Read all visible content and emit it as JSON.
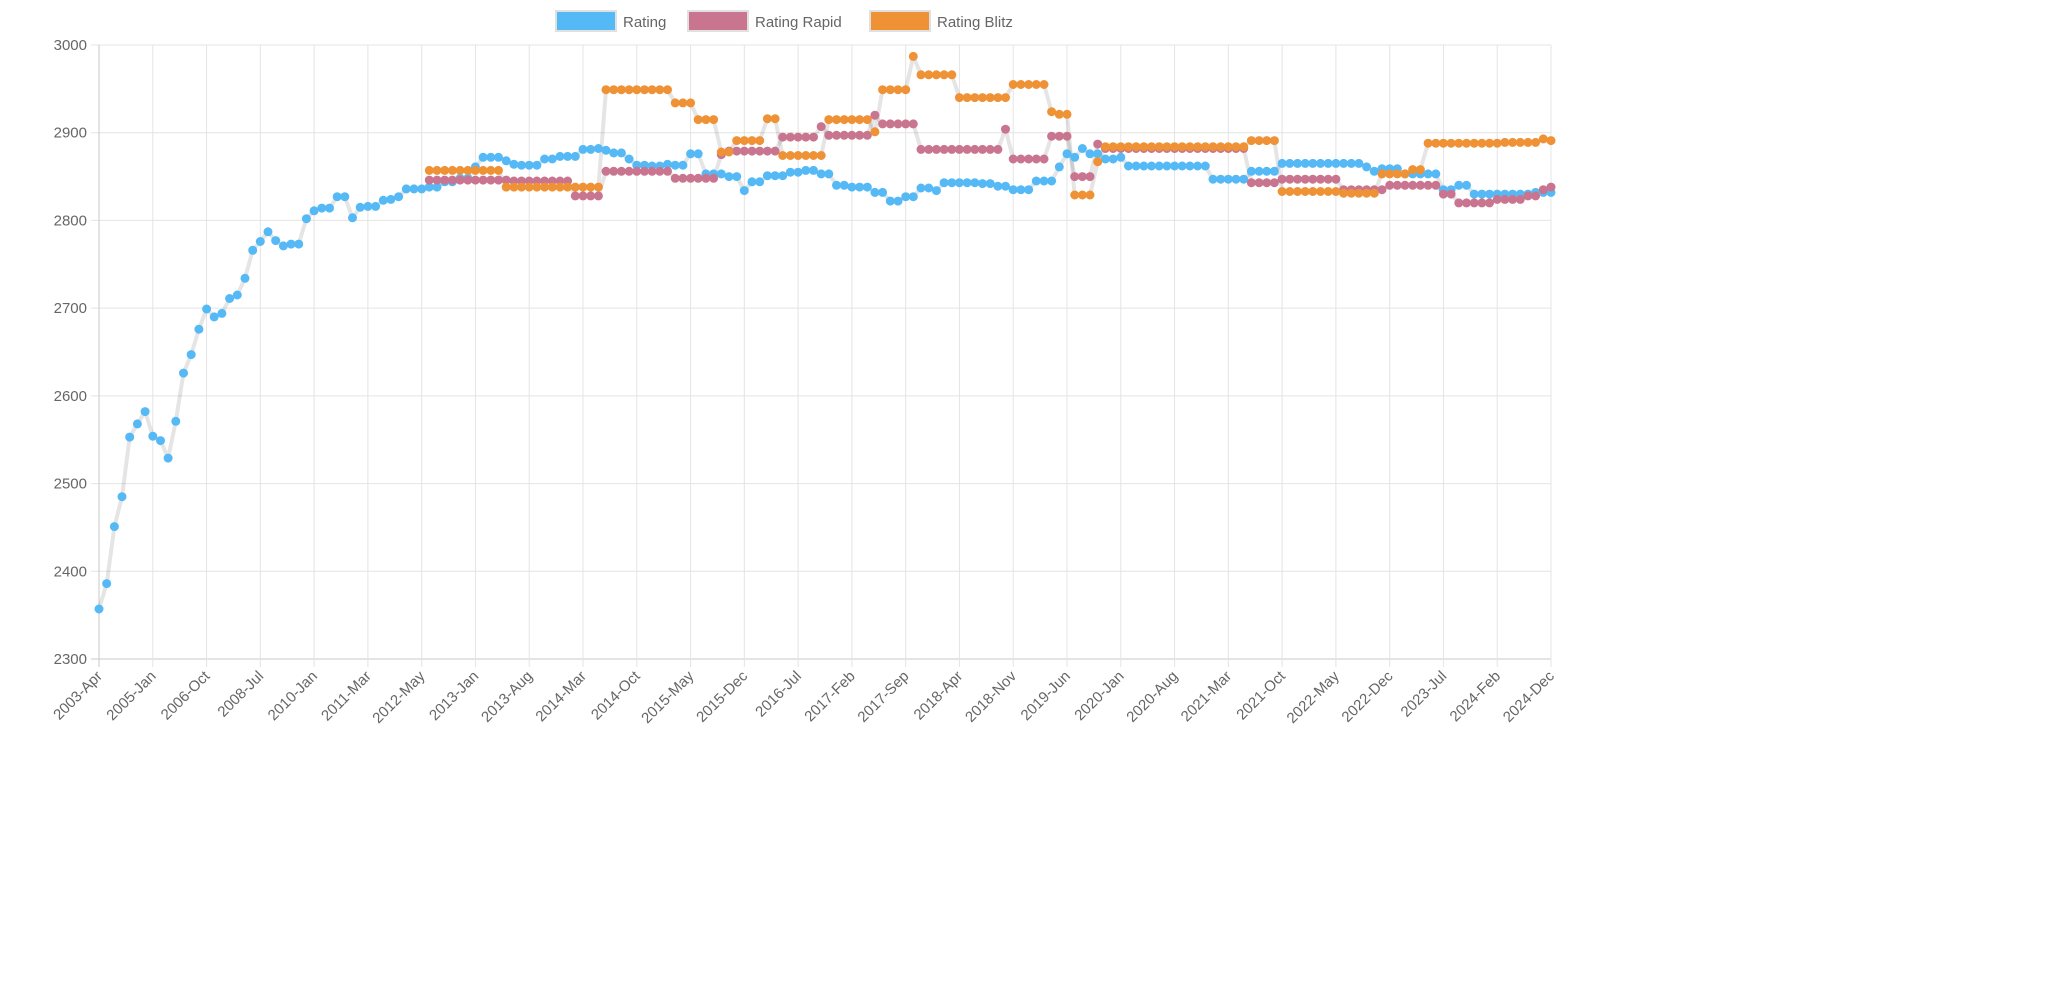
{
  "chart_data": {
    "type": "line",
    "title": "",
    "xlabel": "",
    "ylabel": "",
    "ylim": [
      2300,
      3000
    ],
    "y_ticks": [
      "2300",
      "2400",
      "2500",
      "2600",
      "2700",
      "2800",
      "2900",
      "3000"
    ],
    "grid": true,
    "legend_position": "top",
    "x_tick_labels": [
      "2003-Apr",
      "2005-Jan",
      "2006-Oct",
      "2008-Jul",
      "2010-Jan",
      "2011-Mar",
      "2012-May",
      "2013-Jan",
      "2013-Aug",
      "2014-Mar",
      "2014-Oct",
      "2015-May",
      "2015-Dec",
      "2016-Jul",
      "2017-Feb",
      "2017-Sep",
      "2018-Apr",
      "2018-Nov",
      "2019-Jun",
      "2020-Jan",
      "2020-Aug",
      "2021-Mar",
      "2021-Oct",
      "2022-May",
      "2022-Dec",
      "2023-Jul",
      "2024-Feb",
      "2024-Dec"
    ],
    "categories": [
      "2003-Apr",
      "2003-Jul",
      "2003-Oct",
      "2004-Jan",
      "2004-Apr",
      "2004-Jul",
      "2004-Oct",
      "2005-Jan",
      "2005-Apr",
      "2005-Jul",
      "2005-Oct",
      "2006-Jan",
      "2006-Apr",
      "2006-Jul",
      "2006-Oct",
      "2007-Jan",
      "2007-Apr",
      "2007-Jul",
      "2007-Oct",
      "2008-Jan",
      "2008-Apr",
      "2008-Jul",
      "2008-Oct",
      "2009-Jan",
      "2009-Apr",
      "2009-Jul",
      "2009-Sep",
      "2009-Nov",
      "2010-Jan",
      "2010-Mar",
      "2010-May",
      "2010-Jul",
      "2010-Sep",
      "2010-Nov",
      "2011-Jan",
      "2011-Mar",
      "2011-May",
      "2011-Jul",
      "2011-Sep",
      "2011-Nov",
      "2012-Jan",
      "2012-Mar",
      "2012-May",
      "2012-Jul",
      "2012-Aug",
      "2012-Sep",
      "2012-Oct",
      "2012-Nov",
      "2012-Dec",
      "2013-Jan",
      "2013-Feb",
      "2013-Mar",
      "2013-Apr",
      "2013-May",
      "2013-Jun",
      "2013-Jul",
      "2013-Aug",
      "2013-Sep",
      "2013-Oct",
      "2013-Nov",
      "2013-Dec",
      "2014-Jan",
      "2014-Feb",
      "2014-Mar",
      "2014-Apr",
      "2014-May",
      "2014-Jun",
      "2014-Jul",
      "2014-Aug",
      "2014-Sep",
      "2014-Oct",
      "2014-Nov",
      "2014-Dec",
      "2015-Jan",
      "2015-Feb",
      "2015-Mar",
      "2015-Apr",
      "2015-May",
      "2015-Jun",
      "2015-Jul",
      "2015-Aug",
      "2015-Sep",
      "2015-Oct",
      "2015-Nov",
      "2015-Dec",
      "2016-Jan",
      "2016-Feb",
      "2016-Mar",
      "2016-Apr",
      "2016-May",
      "2016-Jun",
      "2016-Jul",
      "2016-Aug",
      "2016-Sep",
      "2016-Oct",
      "2016-Nov",
      "2016-Dec",
      "2017-Jan",
      "2017-Feb",
      "2017-Mar",
      "2017-Apr",
      "2017-May",
      "2017-Jun",
      "2017-Jul",
      "2017-Aug",
      "2017-Sep",
      "2017-Oct",
      "2017-Nov",
      "2017-Dec",
      "2018-Jan",
      "2018-Feb",
      "2018-Mar",
      "2018-Apr",
      "2018-May",
      "2018-Jun",
      "2018-Jul",
      "2018-Aug",
      "2018-Sep",
      "2018-Oct",
      "2018-Nov",
      "2018-Dec",
      "2019-Jan",
      "2019-Feb",
      "2019-Mar",
      "2019-Apr",
      "2019-May",
      "2019-Jun",
      "2019-Jul",
      "2019-Aug",
      "2019-Sep",
      "2019-Oct",
      "2019-Nov",
      "2019-Dec",
      "2020-Jan",
      "2020-Feb",
      "2020-Mar",
      "2020-Apr",
      "2020-May",
      "2020-Jun",
      "2020-Jul",
      "2020-Aug",
      "2020-Sep",
      "2020-Oct",
      "2020-Nov",
      "2020-Dec",
      "2021-Jan",
      "2021-Feb",
      "2021-Mar",
      "2021-Apr",
      "2021-May",
      "2021-Jun",
      "2021-Jul",
      "2021-Aug",
      "2021-Sep",
      "2021-Oct",
      "2021-Nov",
      "2021-Dec",
      "2022-Jan",
      "2022-Feb",
      "2022-Mar",
      "2022-Apr",
      "2022-May",
      "2022-Jun",
      "2022-Jul",
      "2022-Aug",
      "2022-Sep",
      "2022-Oct",
      "2022-Nov",
      "2022-Dec",
      "2023-Jan",
      "2023-Feb",
      "2023-Mar",
      "2023-Apr",
      "2023-May",
      "2023-Jun",
      "2023-Jul",
      "2023-Aug",
      "2023-Sep",
      "2023-Oct",
      "2023-Nov",
      "2023-Dec",
      "2024-Jan",
      "2024-Feb",
      "2024-Mar",
      "2024-Apr",
      "2024-Jun",
      "2024-Aug",
      "2024-Oct",
      "2024-Nov",
      "2024-Dec"
    ],
    "series": [
      {
        "name": "Rating",
        "color": "#55b9f6",
        "values": [
          2357,
          2386,
          2451,
          2485,
          2553,
          2568,
          2582,
          2554,
          2549,
          2529,
          2571,
          2626,
          2647,
          2676,
          2699,
          2690,
          2694,
          2711,
          2715,
          2734,
          2766,
          2776,
          2787,
          2777,
          2771,
          2773,
          2773,
          2802,
          2811,
          2814,
          2814,
          2827,
          2827,
          2803,
          2815,
          2816,
          2816,
          2823,
          2824,
          2827,
          2836,
          2836,
          2836,
          2838,
          2838,
          2844,
          2844,
          2848,
          2848,
          2861,
          2872,
          2872,
          2872,
          2868,
          2864,
          2863,
          2863,
          2863,
          2870,
          2870,
          2873,
          2873,
          2873,
          2881,
          2881,
          2882,
          2880,
          2877,
          2877,
          2870,
          2863,
          2863,
          2862,
          2862,
          2864,
          2863,
          2863,
          2876,
          2876,
          2853,
          2853,
          2853,
          2850,
          2850,
          2834,
          2844,
          2844,
          2851,
          2851,
          2851,
          2855,
          2855,
          2857,
          2857,
          2853,
          2853,
          2840,
          2840,
          2838,
          2838,
          2838,
          2832,
          2832,
          2822,
          2822,
          2827,
          2827,
          2837,
          2837,
          2834,
          2843,
          2843,
          2843,
          2843,
          2843,
          2842,
          2842,
          2839,
          2839,
          2835,
          2835,
          2835,
          2845,
          2845,
          2845,
          2861,
          2876,
          2872,
          2882,
          2876,
          2876,
          2870,
          2870,
          2872,
          2862,
          2862,
          2862,
          2862,
          2862,
          2862,
          2862,
          2862,
          2862,
          2862,
          2862,
          2847,
          2847,
          2847,
          2847,
          2847,
          2856,
          2856,
          2856,
          2856,
          2865,
          2865,
          2865,
          2865,
          2865,
          2865,
          2865,
          2865,
          2865,
          2865,
          2865,
          2861,
          2856,
          2859,
          2859,
          2859,
          2853,
          2853,
          2853,
          2853,
          2853,
          2835,
          2835,
          2840,
          2840,
          2830,
          2830,
          2830,
          2830,
          2830,
          2830,
          2830,
          2830,
          2832,
          2832,
          2832
        ]
      },
      {
        "name": "Rating Rapid",
        "color": "#c97590",
        "values": [
          null,
          null,
          null,
          null,
          null,
          null,
          null,
          null,
          null,
          null,
          null,
          null,
          null,
          null,
          null,
          null,
          null,
          null,
          null,
          null,
          null,
          null,
          null,
          null,
          null,
          null,
          null,
          null,
          null,
          null,
          null,
          null,
          null,
          null,
          null,
          null,
          null,
          null,
          null,
          null,
          null,
          null,
          null,
          2846,
          2846,
          2846,
          2846,
          2846,
          2846,
          2846,
          2846,
          2846,
          2846,
          2846,
          2845,
          2845,
          2845,
          2845,
          2845,
          2845,
          2845,
          2845,
          2828,
          2828,
          2828,
          2828,
          2856,
          2856,
          2856,
          2856,
          2856,
          2856,
          2856,
          2856,
          2856,
          2848,
          2848,
          2848,
          2848,
          2848,
          2848,
          2875,
          2879,
          2879,
          2879,
          2879,
          2879,
          2879,
          2879,
          2895,
          2895,
          2895,
          2895,
          2895,
          2907,
          2897,
          2897,
          2897,
          2897,
          2897,
          2897,
          2920,
          2910,
          2910,
          2910,
          2910,
          2910,
          2881,
          2881,
          2881,
          2881,
          2881,
          2881,
          2881,
          2881,
          2881,
          2881,
          2881,
          2904,
          2870,
          2870,
          2870,
          2870,
          2870,
          2896,
          2896,
          2896,
          2850,
          2850,
          2850,
          2887,
          2882,
          2882,
          2882,
          2882,
          2882,
          2882,
          2882,
          2882,
          2882,
          2882,
          2882,
          2882,
          2882,
          2882,
          2882,
          2882,
          2882,
          2882,
          2882,
          2843,
          2843,
          2843,
          2843,
          2847,
          2847,
          2847,
          2847,
          2847,
          2847,
          2847,
          2847,
          2835,
          2835,
          2835,
          2835,
          2835,
          2835,
          2840,
          2840,
          2840,
          2840,
          2840,
          2840,
          2840,
          2830,
          2830,
          2820,
          2820,
          2820,
          2820,
          2820,
          2824,
          2824,
          2824,
          2824,
          2828,
          2828,
          2835,
          2838
        ]
      },
      {
        "name": "Rating Blitz",
        "color": "#ef9236",
        "values": [
          null,
          null,
          null,
          null,
          null,
          null,
          null,
          null,
          null,
          null,
          null,
          null,
          null,
          null,
          null,
          null,
          null,
          null,
          null,
          null,
          null,
          null,
          null,
          null,
          null,
          null,
          null,
          null,
          null,
          null,
          null,
          null,
          null,
          null,
          null,
          null,
          null,
          null,
          null,
          null,
          null,
          null,
          null,
          2857,
          2857,
          2857,
          2857,
          2857,
          2857,
          2857,
          2857,
          2857,
          2857,
          2838,
          2838,
          2838,
          2838,
          2838,
          2838,
          2838,
          2838,
          2838,
          2838,
          2838,
          2838,
          2838,
          2949,
          2949,
          2949,
          2949,
          2949,
          2949,
          2949,
          2949,
          2949,
          2934,
          2934,
          2934,
          2915,
          2915,
          2915,
          2878,
          2878,
          2891,
          2891,
          2891,
          2891,
          2916,
          2916,
          2874,
          2874,
          2874,
          2874,
          2874,
          2874,
          2915,
          2915,
          2915,
          2915,
          2915,
          2915,
          2901,
          2949,
          2949,
          2949,
          2949,
          2987,
          2966,
          2966,
          2966,
          2966,
          2966,
          2940,
          2940,
          2940,
          2940,
          2940,
          2940,
          2940,
          2955,
          2955,
          2955,
          2955,
          2955,
          2924,
          2921,
          2921,
          2829,
          2829,
          2829,
          2867,
          2884,
          2884,
          2884,
          2884,
          2884,
          2884,
          2884,
          2884,
          2884,
          2884,
          2884,
          2884,
          2884,
          2884,
          2884,
          2884,
          2884,
          2884,
          2884,
          2891,
          2891,
          2891,
          2891,
          2833,
          2833,
          2833,
          2833,
          2833,
          2833,
          2833,
          2833,
          2831,
          2831,
          2831,
          2831,
          2831,
          2853,
          2853,
          2853,
          2853,
          2858,
          2858,
          2888,
          2888,
          2888,
          2888,
          2888,
          2888,
          2888,
          2888,
          2888,
          2888,
          2889,
          2889,
          2889,
          2889,
          2889,
          2893,
          2891
        ]
      }
    ]
  }
}
